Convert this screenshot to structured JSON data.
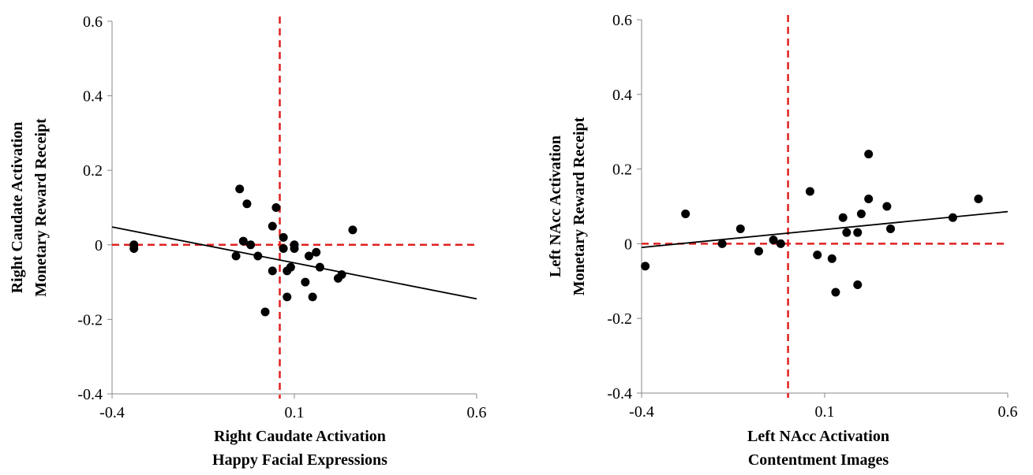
{
  "chart_data": [
    {
      "type": "scatter",
      "title": "",
      "xlabel": [
        "Right Caudate Activation",
        "Happy Facial Expressions"
      ],
      "ylabel": [
        "Right Caudate Activation",
        "Monetary Reward Receipt"
      ],
      "xlim": [
        -0.4,
        0.6
      ],
      "ylim": [
        -0.4,
        0.6
      ],
      "x_ticks": [
        -0.4,
        0.1,
        0.6
      ],
      "x_tick_labels": [
        "-0.4",
        "0.1",
        "0.6"
      ],
      "y_ticks": [
        -0.4,
        -0.2,
        0,
        0.2,
        0.4,
        0.6
      ],
      "y_tick_labels": [
        "-0.4",
        "-0.2",
        "0",
        "0.2",
        "0.4",
        "0.6"
      ],
      "grid": false,
      "reference_lines": {
        "x": 0.06,
        "y": 0,
        "color": "#e02020",
        "style": "dashed"
      },
      "trendline": {
        "x": [
          -0.4,
          0.6
        ],
        "y": [
          0.048,
          -0.145
        ],
        "color": "#000000"
      },
      "marker_color": "#000000",
      "points": [
        {
          "x": -0.34,
          "y": 0.0
        },
        {
          "x": -0.34,
          "y": -0.01
        },
        {
          "x": -0.05,
          "y": 0.15
        },
        {
          "x": -0.03,
          "y": 0.11
        },
        {
          "x": -0.04,
          "y": 0.01
        },
        {
          "x": -0.02,
          "y": 0.0
        },
        {
          "x": -0.06,
          "y": -0.03
        },
        {
          "x": 0.0,
          "y": -0.03
        },
        {
          "x": 0.04,
          "y": 0.05
        },
        {
          "x": 0.05,
          "y": 0.1
        },
        {
          "x": 0.07,
          "y": 0.02
        },
        {
          "x": 0.07,
          "y": -0.01
        },
        {
          "x": 0.1,
          "y": 0.0
        },
        {
          "x": 0.1,
          "y": -0.01
        },
        {
          "x": 0.04,
          "y": -0.07
        },
        {
          "x": 0.08,
          "y": -0.07
        },
        {
          "x": 0.09,
          "y": -0.06
        },
        {
          "x": 0.08,
          "y": -0.14
        },
        {
          "x": 0.02,
          "y": -0.18
        },
        {
          "x": 0.14,
          "y": -0.03
        },
        {
          "x": 0.16,
          "y": -0.02
        },
        {
          "x": 0.17,
          "y": -0.06
        },
        {
          "x": 0.13,
          "y": -0.1
        },
        {
          "x": 0.15,
          "y": -0.14
        },
        {
          "x": 0.22,
          "y": -0.09
        },
        {
          "x": 0.23,
          "y": -0.08
        },
        {
          "x": 0.26,
          "y": 0.04
        }
      ]
    },
    {
      "type": "scatter",
      "title": "",
      "xlabel": [
        "Left NAcc Activation",
        "Contentment Images"
      ],
      "ylabel": [
        "Left NAcc Activation",
        "Monetary Reward Receipt"
      ],
      "xlim": [
        -0.4,
        0.6
      ],
      "ylim": [
        -0.4,
        0.6
      ],
      "x_ticks": [
        -0.4,
        0.1,
        0.6
      ],
      "x_tick_labels": [
        "-0.4",
        "0.1",
        "0.6"
      ],
      "y_ticks": [
        -0.4,
        -0.2,
        0,
        0.2,
        0.4,
        0.6
      ],
      "y_tick_labels": [
        "-0.4",
        "-0.2",
        "0",
        "0.2",
        "0.4",
        "0.6"
      ],
      "grid": false,
      "reference_lines": {
        "x": 0.0,
        "y": 0,
        "color": "#e02020",
        "style": "dashed"
      },
      "trendline": {
        "x": [
          -0.4,
          0.6
        ],
        "y": [
          -0.01,
          0.086
        ],
        "color": "#000000"
      },
      "marker_color": "#000000",
      "points": [
        {
          "x": -0.39,
          "y": -0.06
        },
        {
          "x": -0.28,
          "y": 0.08
        },
        {
          "x": -0.18,
          "y": 0.0
        },
        {
          "x": -0.13,
          "y": 0.04
        },
        {
          "x": -0.08,
          "y": -0.02
        },
        {
          "x": -0.04,
          "y": 0.01
        },
        {
          "x": -0.02,
          "y": 0.0
        },
        {
          "x": 0.06,
          "y": 0.14
        },
        {
          "x": 0.08,
          "y": -0.03
        },
        {
          "x": 0.12,
          "y": -0.04
        },
        {
          "x": 0.13,
          "y": -0.13
        },
        {
          "x": 0.15,
          "y": 0.07
        },
        {
          "x": 0.16,
          "y": 0.03
        },
        {
          "x": 0.19,
          "y": 0.03
        },
        {
          "x": 0.19,
          "y": -0.11
        },
        {
          "x": 0.2,
          "y": 0.08
        },
        {
          "x": 0.22,
          "y": 0.12
        },
        {
          "x": 0.22,
          "y": 0.24
        },
        {
          "x": 0.27,
          "y": 0.1
        },
        {
          "x": 0.28,
          "y": 0.04
        },
        {
          "x": 0.45,
          "y": 0.07
        },
        {
          "x": 0.52,
          "y": 0.12
        }
      ]
    }
  ]
}
